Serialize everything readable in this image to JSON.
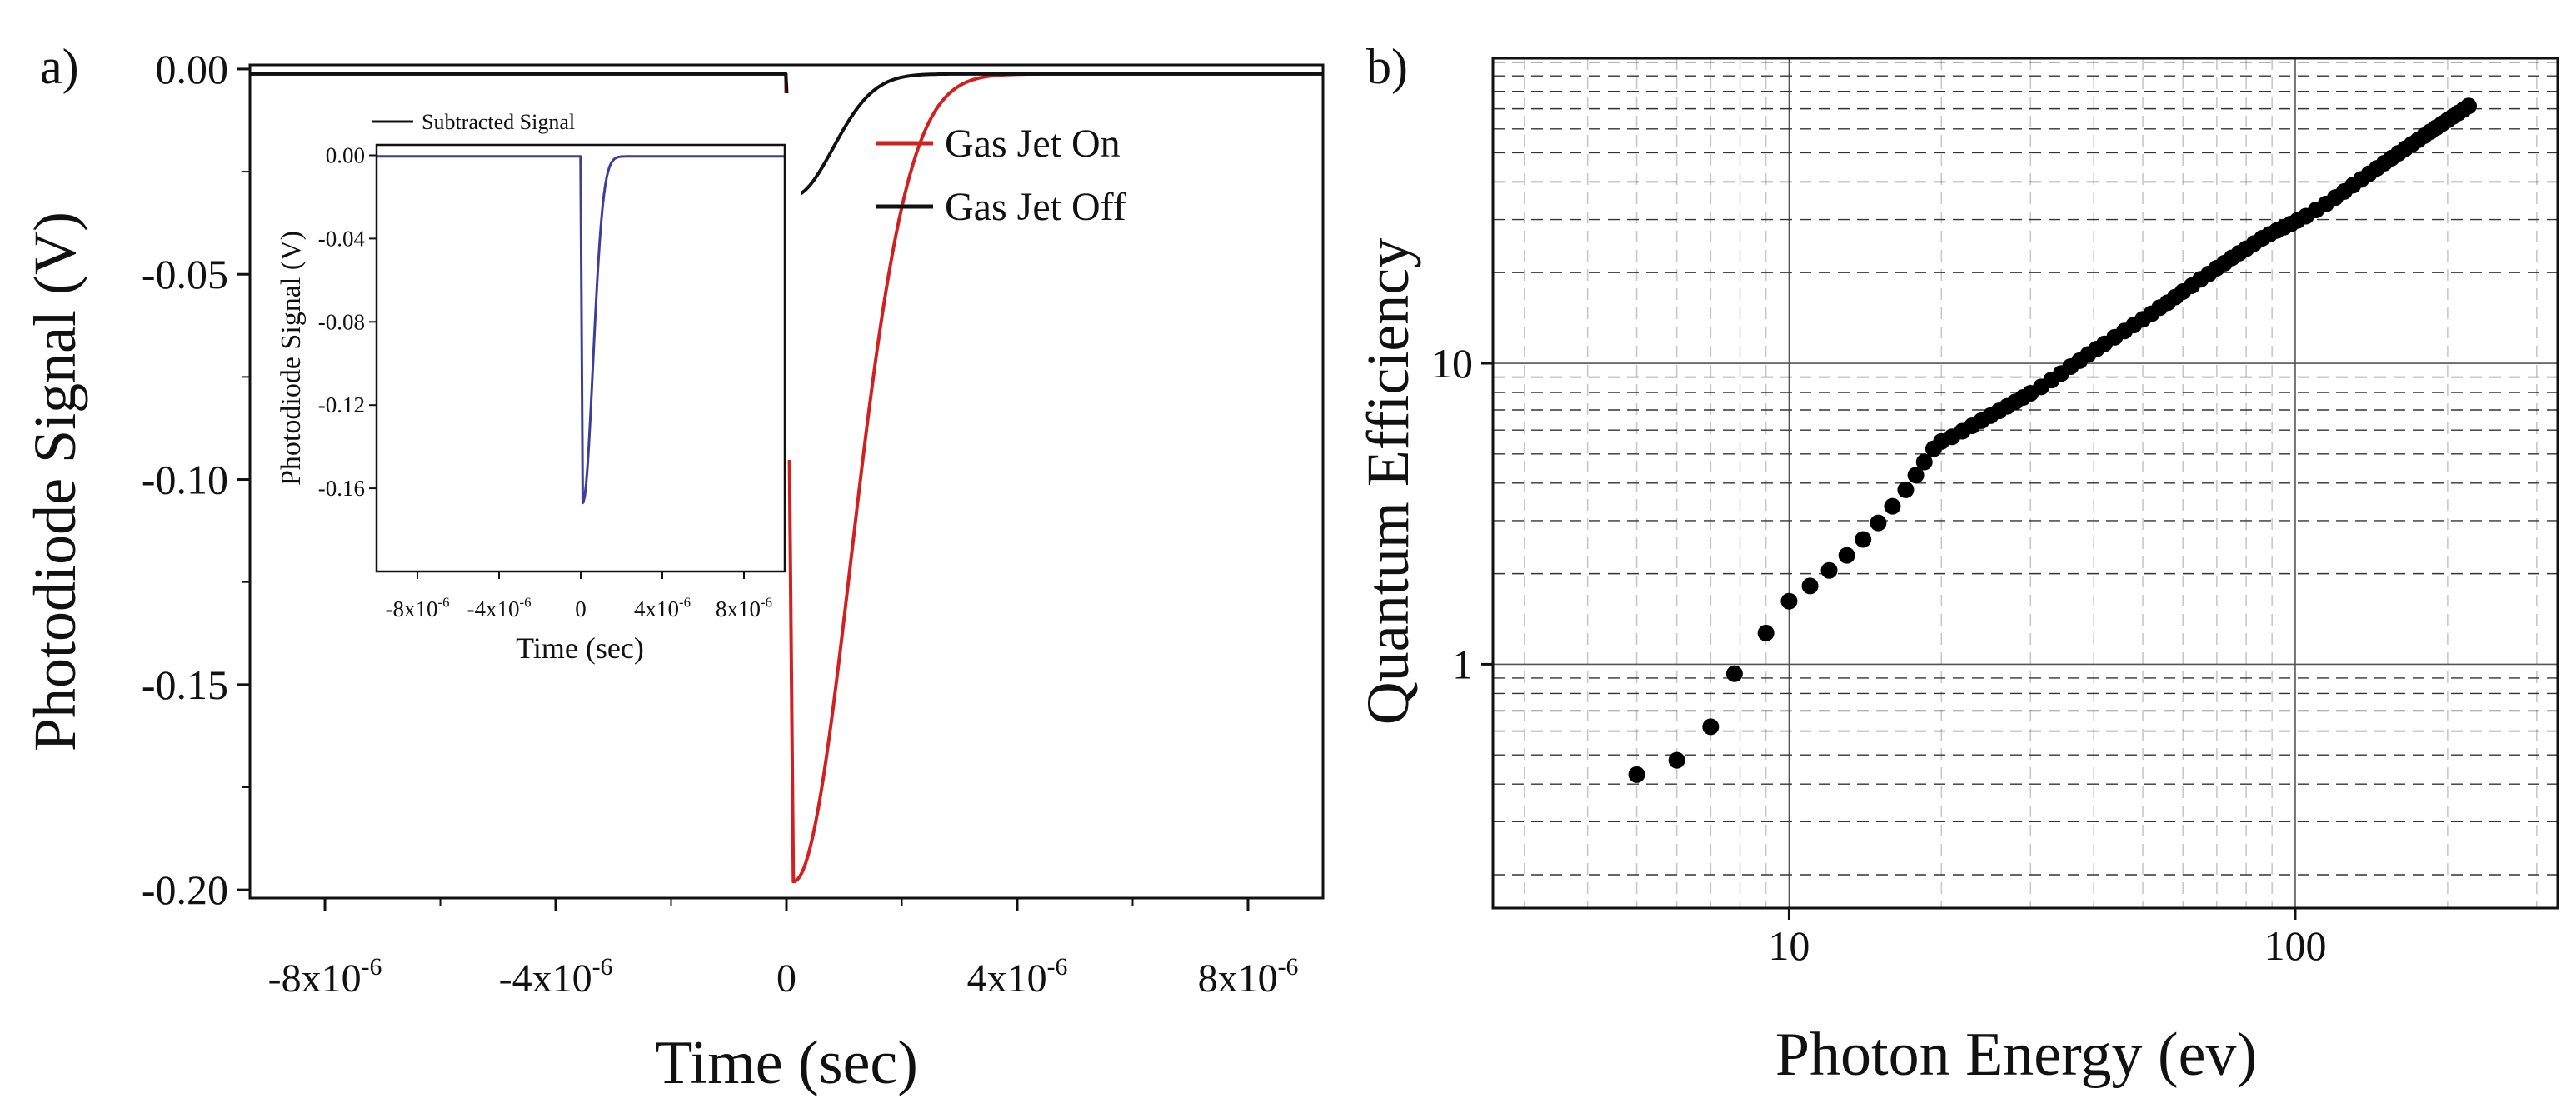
{
  "chart_data": [
    {
      "type": "line",
      "panel_label": "a)",
      "xlabel": "Time (sec)",
      "ylabel": "Photodiode Signal (V)",
      "xlim": [
        -9.3e-06,
        9.3e-06
      ],
      "ylim": [
        -0.202,
        0.001
      ],
      "xticks": [
        -8e-06,
        -4e-06,
        0,
        4e-06,
        8e-06
      ],
      "xtick_labels": [
        {
          "base": "-8x10",
          "exp": "-6"
        },
        {
          "base": "-4x10",
          "exp": "-6"
        },
        {
          "base": "0",
          "exp": ""
        },
        {
          "base": "4x10",
          "exp": "-6"
        },
        {
          "base": "8x10",
          "exp": "-6"
        }
      ],
      "yticks": [
        0.0,
        -0.05,
        -0.1,
        -0.15,
        -0.2
      ],
      "ytick_labels": [
        "0.00",
        "-0.05",
        "-0.10",
        "-0.15",
        "-0.20"
      ],
      "grid": false,
      "legend_position": "top-right",
      "series": [
        {
          "name": "Gas Jet On",
          "color": "#d21f1f",
          "baseline": -0.0012,
          "t0": -1e-08,
          "peak_time": 1.2e-07,
          "peak": -0.198,
          "decay_time": 1.4e-06,
          "points": 400
        },
        {
          "name": "Gas Jet Off",
          "color": "#111111",
          "baseline": -0.0012,
          "t0": -1e-08,
          "peak_time": 1e-07,
          "peak": -0.031,
          "decay_time": 1e-06,
          "points": 400
        }
      ],
      "inset": {
        "xlabel": "Time (sec)",
        "ylabel": "Photodiode Signal (V)",
        "xlim": [
          -1e-05,
          1e-05
        ],
        "ylim": [
          -0.2,
          0.005
        ],
        "xticks": [
          -8e-06,
          -4e-06,
          0,
          4e-06,
          8e-06
        ],
        "xtick_labels": [
          {
            "base": "-8x10",
            "exp": "-6"
          },
          {
            "base": "-4x10",
            "exp": "-6"
          },
          {
            "base": "0",
            "exp": ""
          },
          {
            "base": "4x10",
            "exp": "-6"
          },
          {
            "base": "8x10",
            "exp": "-6"
          }
        ],
        "yticks": [
          0.0,
          -0.04,
          -0.08,
          -0.12,
          -0.16
        ],
        "ytick_labels": [
          "0.00",
          "-0.04",
          "-0.08",
          "-0.12",
          "-0.16"
        ],
        "legend_position": "top-left",
        "series": [
          {
            "name": "Subtracted Signal",
            "color": "#3b3f9a",
            "baseline": -0.0005,
            "t0": -1e-08,
            "peak_time": 1e-07,
            "peak": -0.167,
            "decay_time": 7e-07,
            "points": 300
          }
        ]
      }
    },
    {
      "type": "scatter",
      "panel_label": "b)",
      "xlabel": "Photon Energy (ev)",
      "ylabel": "Quantum Efficiency",
      "xscale": "log",
      "yscale": "log",
      "xlim": [
        2.6,
        330
      ],
      "ylim": [
        0.155,
        103
      ],
      "xtick_labels": [
        {
          "value": 10,
          "label": "10"
        },
        {
          "value": 100,
          "label": "100"
        }
      ],
      "ytick_labels": [
        {
          "value": 1,
          "label": "1"
        },
        {
          "value": 10,
          "label": "10"
        }
      ],
      "grid": true,
      "color": "#000000",
      "x": [
        5.0,
        6.0,
        7.0,
        7.8,
        9.0,
        10.0,
        11.0,
        12.0,
        13.0,
        14.0,
        15.0,
        16.0,
        17.0,
        17.8,
        18.5,
        19.3,
        20.0,
        21.0,
        22.0,
        23.0,
        24.0,
        25.0,
        26.0,
        27.0,
        28.0,
        29.0,
        30.0,
        31.5,
        33.0,
        34.5,
        36.0,
        37.5,
        39.0,
        40.5,
        42.0,
        44.0,
        46.0,
        48.0,
        50.0,
        52.0,
        54.0,
        56.0,
        58.0,
        60.0,
        62.5,
        65.0,
        67.5,
        70.0,
        72.5,
        75.0,
        77.5,
        80.0,
        83.0,
        86.0,
        89.0,
        92.0,
        95.0,
        98.0,
        101.0,
        105.0,
        110.0,
        115.0,
        120.0,
        125.0,
        130.0,
        135.0,
        140.0,
        145.0,
        150.0,
        155.0,
        160.0,
        165.0,
        170.0,
        175.0,
        180.0,
        185.0,
        190.0,
        195.0,
        200.0,
        205.0,
        210.0,
        215.0,
        220.0
      ],
      "y": [
        0.43,
        0.48,
        0.62,
        0.93,
        1.27,
        1.62,
        1.82,
        2.05,
        2.3,
        2.6,
        2.95,
        3.35,
        3.8,
        4.25,
        4.7,
        5.2,
        5.5,
        5.7,
        5.95,
        6.2,
        6.45,
        6.7,
        6.95,
        7.2,
        7.45,
        7.7,
        7.95,
        8.35,
        8.8,
        9.25,
        9.75,
        10.2,
        10.7,
        11.15,
        11.6,
        12.2,
        12.8,
        13.4,
        14.0,
        14.6,
        15.3,
        15.9,
        16.6,
        17.3,
        18.1,
        19.0,
        19.8,
        20.7,
        21.5,
        22.4,
        23.2,
        24.0,
        25.0,
        26.0,
        26.8,
        27.6,
        28.3,
        29.0,
        29.8,
        30.8,
        32.3,
        33.8,
        35.5,
        37.2,
        39.0,
        40.8,
        42.6,
        44.4,
        46.2,
        48.0,
        49.8,
        51.6,
        53.4,
        55.2,
        57.0,
        58.8,
        60.6,
        62.4,
        64.2,
        66.0,
        67.8,
        69.6,
        71.5
      ]
    }
  ]
}
